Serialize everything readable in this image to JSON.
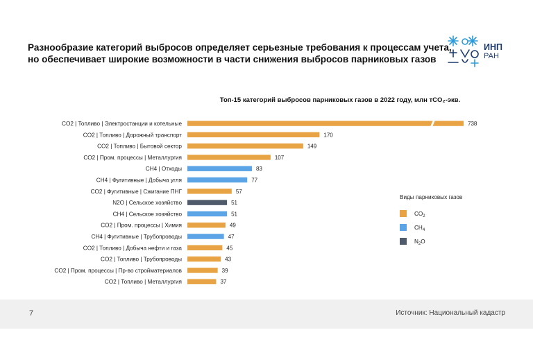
{
  "slide": {
    "title_line1": "Разнообразие категорий выбросов определяет серьезные требования к процессам учета,",
    "title_line2": "но обеспечивает широкие возможности в части снижения выбросов парниковых газов",
    "logo_name": "ИНП",
    "logo_sub": "РАН",
    "page_number": "7",
    "source": "Источник: Национальный кадастр"
  },
  "colors": {
    "CO2": "#E8A444",
    "CH4": "#5BA4E6",
    "N2O": "#4F5B6B",
    "break": "#ffffff"
  },
  "chart_data": {
    "type": "bar",
    "orientation": "horizontal",
    "title": "Топ-15 категорий выбросов парниковых газов в 2022 году, млн тCO₂-экв.",
    "categories": [
      "CO2 | Топливо | Электростанции и котельные",
      "CO2 | Топливо | Дорожный транспорт",
      "CO2 | Топливо | Бытовой сектор",
      "CO2 | Пром. процессы | Металлургия",
      "CH4 | Отходы",
      "CH4 | Фугитивные | Добыча угля",
      "CO2 | Фугитивные | Сжигание ПНГ",
      "N2O | Сельское хозяйство",
      "CH4 | Сельское хозяйство",
      "CO2 | Пром. процессы | Химия",
      "CH4 | Фугитивные | Трубопроводы",
      "CO2 | Топливо | Добыча нефти и газа",
      "CO2 | Топливо | Трубопроводы",
      "CO2 | Пром. процессы | Пр-во стройматериалов",
      "CO2 | Топливо | Металлургия"
    ],
    "values": [
      738,
      170,
      149,
      107,
      83,
      77,
      57,
      51,
      51,
      49,
      47,
      45,
      43,
      39,
      37
    ],
    "gas": [
      "CO2",
      "CO2",
      "CO2",
      "CO2",
      "CH4",
      "CH4",
      "CO2",
      "N2O",
      "CH4",
      "CO2",
      "CH4",
      "CO2",
      "CO2",
      "CO2",
      "CO2"
    ],
    "broken_axis": true,
    "legend": {
      "title": "Виды парниковых газов",
      "position": "right",
      "items": [
        {
          "key": "CO2",
          "label_main": "CO",
          "label_sub": "2"
        },
        {
          "key": "CH4",
          "label_main": "CH",
          "label_sub": "4"
        },
        {
          "key": "N2O",
          "label_main": "N",
          "label_sub": "2",
          "label_tail": "O"
        }
      ]
    }
  }
}
